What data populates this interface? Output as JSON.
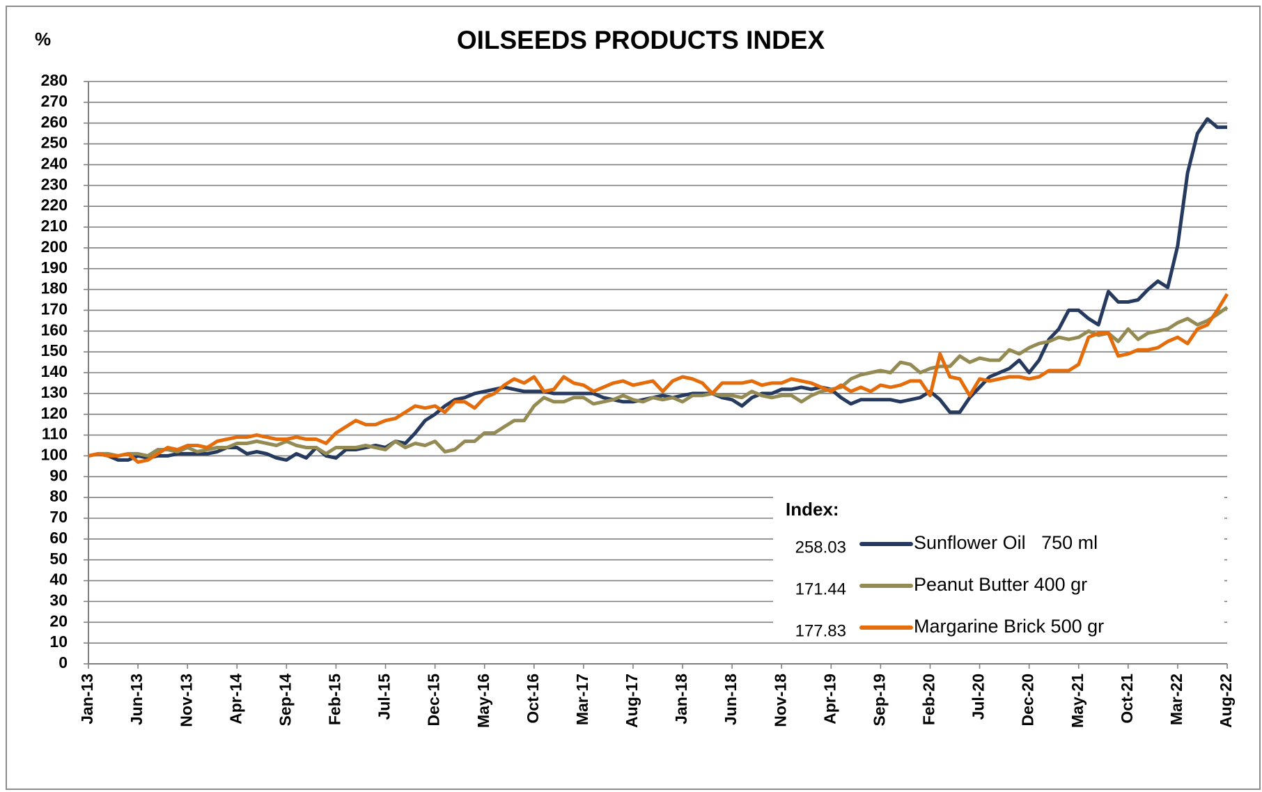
{
  "chart_data": {
    "type": "line",
    "title": "OILSEEDS PRODUCTS INDEX",
    "y_label": "%",
    "legend_title": "Index:",
    "categories": [
      "Jan-13",
      null,
      null,
      null,
      null,
      "Jun-13",
      null,
      null,
      null,
      null,
      "Nov-13",
      null,
      null,
      null,
      null,
      "Apr-14",
      null,
      null,
      null,
      null,
      "Sep-14",
      null,
      null,
      null,
      null,
      "Feb-15",
      null,
      null,
      null,
      null,
      "Jul-15",
      null,
      null,
      null,
      null,
      "Dec-15",
      null,
      null,
      null,
      null,
      "May-16",
      null,
      null,
      null,
      null,
      "Oct-16",
      null,
      null,
      null,
      null,
      "Mar-17",
      null,
      null,
      null,
      null,
      "Aug-17",
      null,
      null,
      null,
      null,
      "Jan-18",
      null,
      null,
      null,
      null,
      "Jun-18",
      null,
      null,
      null,
      null,
      "Nov-18",
      null,
      null,
      null,
      null,
      "Apr-19",
      null,
      null,
      null,
      null,
      "Sep-19",
      null,
      null,
      null,
      null,
      "Feb-20",
      null,
      null,
      null,
      null,
      "Jul-20",
      null,
      null,
      null,
      null,
      "Dec-20",
      null,
      null,
      null,
      null,
      "May-21",
      null,
      null,
      null,
      null,
      "Oct-21",
      null,
      null,
      null,
      null,
      "Mar-22",
      null,
      null,
      null,
      null,
      "Aug-22"
    ],
    "series": [
      {
        "name": "Sunflower Oil   750 ml",
        "index_label": "258.03",
        "color": "#253a5e",
        "values": [
          100,
          101,
          100,
          98,
          98,
          100,
          99,
          100,
          100,
          101,
          101,
          101,
          101,
          102,
          104,
          104,
          101,
          102,
          101,
          99,
          98,
          101,
          99,
          104,
          100,
          99,
          103,
          103,
          104,
          105,
          104,
          107,
          106,
          111,
          117,
          120,
          124,
          127,
          128,
          130,
          131,
          132,
          133,
          132,
          131,
          131,
          131,
          130,
          130,
          130,
          130,
          130,
          128,
          127,
          126,
          126,
          127,
          128,
          129,
          128,
          129,
          130,
          130,
          130,
          128,
          127,
          124,
          128,
          130,
          130,
          132,
          132,
          133,
          132,
          133,
          132,
          128,
          125,
          127,
          127,
          127,
          127,
          126,
          127,
          128,
          131,
          127,
          121,
          121,
          128,
          133,
          138,
          140,
          142,
          146,
          140,
          146,
          156,
          161,
          170,
          170,
          166,
          163,
          179,
          174,
          174,
          175,
          180,
          184,
          181,
          201,
          236,
          255,
          262,
          258,
          258.03
        ]
      },
      {
        "name": "Peanut Butter 400 gr",
        "index_label": "171.44",
        "color": "#948a54",
        "values": [
          100,
          101,
          101,
          100,
          101,
          101,
          100,
          103,
          103,
          102,
          104,
          102,
          103,
          104,
          104,
          106,
          106,
          107,
          106,
          105,
          107,
          105,
          104,
          104,
          101,
          104,
          104,
          104,
          105,
          104,
          103,
          107,
          104,
          106,
          105,
          107,
          102,
          103,
          107,
          107,
          111,
          111,
          114,
          117,
          117,
          124,
          128,
          126,
          126,
          128,
          128,
          125,
          126,
          127,
          129,
          127,
          126,
          128,
          127,
          128,
          126,
          129,
          129,
          130,
          129,
          129,
          128,
          131,
          129,
          128,
          129,
          129,
          126,
          129,
          131,
          132,
          133,
          137,
          139,
          140,
          141,
          140,
          145,
          144,
          140,
          142,
          143,
          143,
          148,
          145,
          147,
          146,
          146,
          151,
          149,
          152,
          154,
          155,
          157,
          156,
          157,
          160,
          158,
          159,
          155,
          161,
          156,
          159,
          160,
          161,
          164,
          166,
          163,
          165,
          168,
          171.44
        ]
      },
      {
        "name": "Margarine Brick 500 gr",
        "index_label": "177.83",
        "color": "#e46c0a",
        "values": [
          100,
          101,
          100,
          100,
          101,
          97,
          98,
          101,
          104,
          103,
          105,
          105,
          104,
          107,
          108,
          109,
          109,
          110,
          109,
          108,
          108,
          109,
          108,
          108,
          106,
          111,
          114,
          117,
          115,
          115,
          117,
          118,
          121,
          124,
          123,
          124,
          121,
          126,
          126,
          123,
          128,
          130,
          134,
          137,
          135,
          138,
          131,
          132,
          138,
          135,
          134,
          131,
          133,
          135,
          136,
          134,
          135,
          136,
          131,
          136,
          138,
          137,
          135,
          130,
          135,
          135,
          135,
          136,
          134,
          135,
          135,
          137,
          136,
          135,
          133,
          131,
          134,
          131,
          133,
          131,
          134,
          133,
          134,
          136,
          136,
          129,
          149,
          138,
          137,
          129,
          137,
          136,
          137,
          138,
          138,
          137,
          138,
          141,
          141,
          141,
          144,
          157,
          159,
          159,
          148,
          149,
          151,
          151,
          152,
          155,
          157,
          154,
          161,
          163,
          170,
          177.83
        ]
      }
    ],
    "ylim": [
      0,
      280
    ],
    "yticks": [
      0,
      10,
      20,
      30,
      40,
      50,
      60,
      70,
      80,
      90,
      100,
      110,
      120,
      130,
      140,
      150,
      160,
      170,
      180,
      190,
      200,
      210,
      220,
      230,
      240,
      250,
      260,
      270,
      280
    ],
    "grid": true
  }
}
